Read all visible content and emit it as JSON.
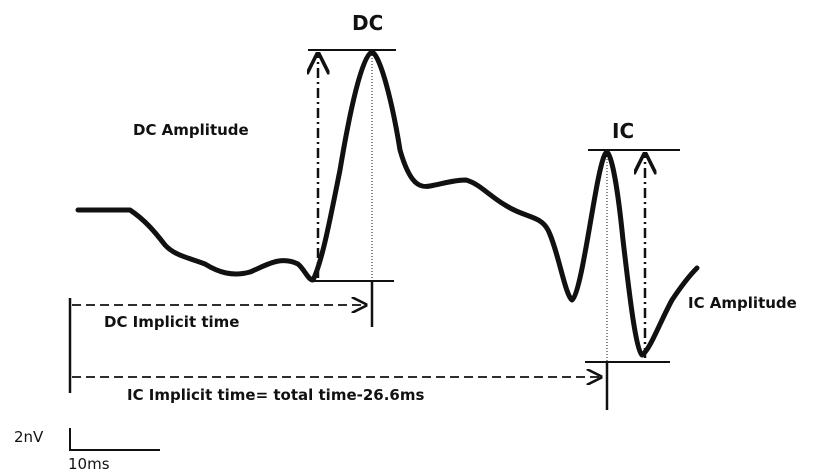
{
  "labels": {
    "dc": "DC",
    "ic": "IC",
    "dc_amplitude": "DC Amplitude",
    "ic_amplitude": "IC Amplitude",
    "dc_implicit_time": "DC Implicit time",
    "ic_implicit_time": "IC Implicit time= total time-26.6ms"
  },
  "scale_bar": {
    "vertical": "2nV",
    "horizontal": "10ms"
  }
}
